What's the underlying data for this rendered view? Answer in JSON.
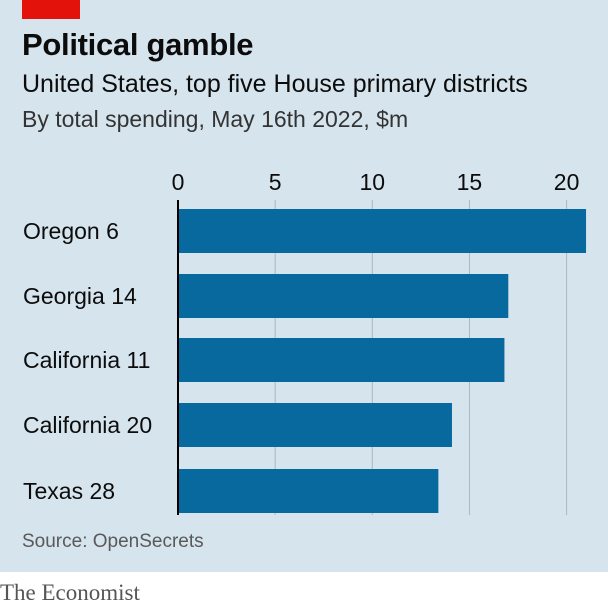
{
  "header": {
    "title": "Political gamble",
    "subtitle": "United States, top five House primary districts",
    "note": "By total spending, May 16th 2022, $m"
  },
  "footer": {
    "source": "Source: OpenSecrets",
    "brand": "The Economist"
  },
  "colors": {
    "bar": "#07699e",
    "panel_background": "#d6e4ed",
    "accent_red": "#e3120b",
    "gridline": "#a9b7c1",
    "axis": "#000000"
  },
  "chart_data": {
    "type": "bar",
    "orientation": "horizontal",
    "categories": [
      "Oregon 6",
      "Georgia 14",
      "California 11",
      "California 20",
      "Texas 28"
    ],
    "values": [
      21.0,
      17.0,
      16.8,
      14.1,
      13.4
    ],
    "xlim": [
      0,
      21
    ],
    "xticks": [
      0,
      5,
      10,
      15,
      20
    ],
    "xtick_labels": [
      "0",
      "5",
      "10",
      "15",
      "20"
    ],
    "tick_position": "top",
    "grid": true,
    "legend": "none",
    "unit": "$m"
  }
}
